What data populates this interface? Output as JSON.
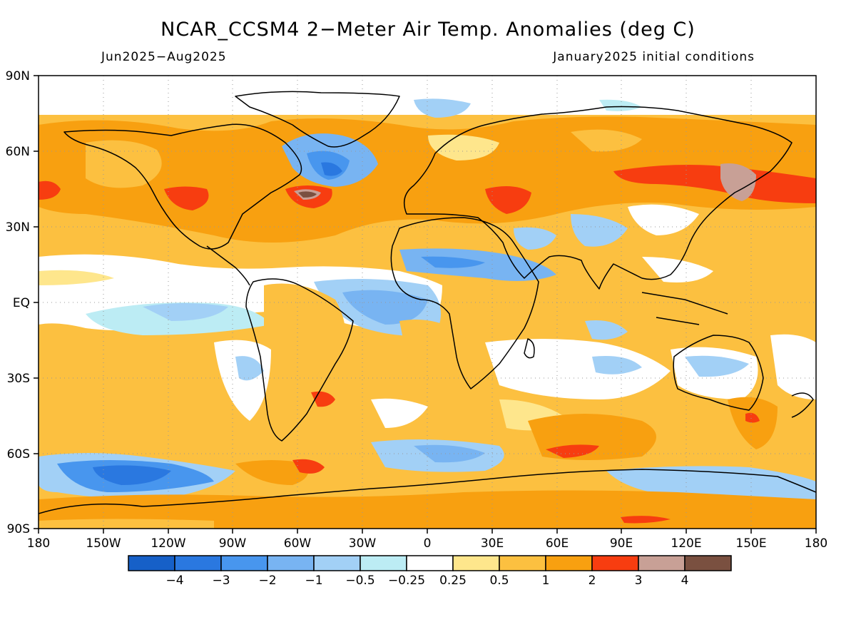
{
  "title": "NCAR_CCSM4 2−Meter Air Temp. Anomalies (deg C)",
  "period": "Jun2025−Aug2025",
  "init": "January2025 initial conditions",
  "lat_labels": [
    "90N",
    "60N",
    "30N",
    "EQ",
    "30S",
    "60S",
    "90S"
  ],
  "lon_labels": [
    "180",
    "150W",
    "120W",
    "90W",
    "60W",
    "30W",
    "0",
    "30E",
    "60E",
    "90E",
    "120E",
    "150E",
    "180"
  ],
  "colorbar": {
    "colors": [
      "#1660c8",
      "#2a78e0",
      "#4896ee",
      "#78b4f2",
      "#a2d0f6",
      "#bcecf4",
      "#ffffff",
      "#fee68c",
      "#fcc040",
      "#f8a010",
      "#f73d10",
      "#c8a096",
      "#7a5040"
    ],
    "labels": [
      "−4",
      "−3",
      "−2",
      "−1",
      "−0.5",
      "−0.25",
      "0.25",
      "0.5",
      "1",
      "2",
      "3",
      "4"
    ]
  },
  "map": {
    "palette": {
      "neg4": "#1660c8",
      "neg3": "#2a78e0",
      "neg2": "#4896ee",
      "neg1": "#78b4f2",
      "neg05": "#a2d0f6",
      "neg025": "#bcecf4",
      "pos025": "#fee68c",
      "pos05": "#fcc040",
      "pos1": "#f8a010",
      "pos2": "#f73d10",
      "pos3": "#c8a096",
      "pos4": "#7a5040"
    }
  }
}
